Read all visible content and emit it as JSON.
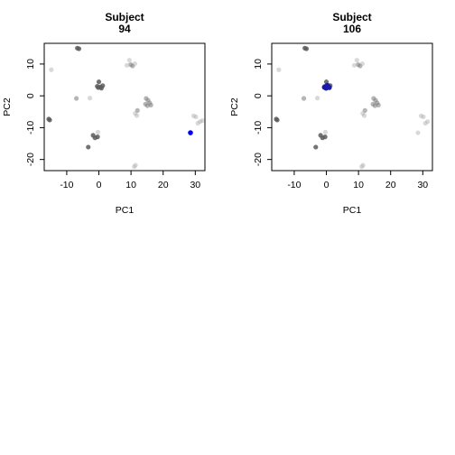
{
  "chart_data": [
    {
      "type": "scatter",
      "title_line1": "Subject",
      "title_line2": "94",
      "xlabel": "PC1",
      "ylabel": "PC2",
      "xlim": [
        -17,
        33
      ],
      "ylim": [
        -23.5,
        16.5
      ],
      "xticks": [
        -10,
        0,
        10,
        20,
        30
      ],
      "yticks": [
        -20,
        -10,
        0,
        10
      ],
      "grid": false,
      "background_points": [
        {
          "x": -6.2,
          "y": 14.8,
          "shade": "dark"
        },
        {
          "x": -6.7,
          "y": 15.0,
          "shade": "dark"
        },
        {
          "x": -14.8,
          "y": 8.2,
          "shade": "light"
        },
        {
          "x": -15.6,
          "y": -7.3,
          "shade": "dark"
        },
        {
          "x": -15.3,
          "y": -7.6,
          "shade": "dark"
        },
        {
          "x": -7.0,
          "y": -0.8,
          "shade": "mid"
        },
        {
          "x": -2.8,
          "y": -0.7,
          "shade": "light"
        },
        {
          "x": 0.0,
          "y": 4.4,
          "shade": "dark"
        },
        {
          "x": -0.5,
          "y": 3.0,
          "shade": "dark"
        },
        {
          "x": 0.5,
          "y": 2.8,
          "shade": "dark"
        },
        {
          "x": 1.2,
          "y": 3.2,
          "shade": "dark"
        },
        {
          "x": -0.2,
          "y": 2.6,
          "shade": "dark"
        },
        {
          "x": 0.8,
          "y": 2.4,
          "shade": "dark"
        },
        {
          "x": 9.5,
          "y": 11.2,
          "shade": "light"
        },
        {
          "x": 9.9,
          "y": 9.8,
          "shade": "mid"
        },
        {
          "x": 10.5,
          "y": 9.4,
          "shade": "mid"
        },
        {
          "x": 8.7,
          "y": 9.6,
          "shade": "light"
        },
        {
          "x": 11.2,
          "y": 10.1,
          "shade": "light"
        },
        {
          "x": 14.7,
          "y": -0.8,
          "shade": "mid"
        },
        {
          "x": 15.3,
          "y": -1.4,
          "shade": "mid"
        },
        {
          "x": 15.8,
          "y": -2.2,
          "shade": "mid"
        },
        {
          "x": 14.5,
          "y": -2.6,
          "shade": "mid"
        },
        {
          "x": 16.2,
          "y": -2.9,
          "shade": "mid"
        },
        {
          "x": 15.1,
          "y": -3.1,
          "shade": "mid"
        },
        {
          "x": 12.0,
          "y": -4.6,
          "shade": "mid"
        },
        {
          "x": 11.8,
          "y": -6.2,
          "shade": "light"
        },
        {
          "x": 11.3,
          "y": -5.5,
          "shade": "light"
        },
        {
          "x": -1.8,
          "y": -12.4,
          "shade": "dark"
        },
        {
          "x": -0.4,
          "y": -12.9,
          "shade": "dark"
        },
        {
          "x": -1.2,
          "y": -13.2,
          "shade": "dark"
        },
        {
          "x": -0.3,
          "y": -11.4,
          "shade": "light"
        },
        {
          "x": -3.3,
          "y": -16.1,
          "shade": "dark"
        },
        {
          "x": 11.4,
          "y": -21.8,
          "shade": "light"
        },
        {
          "x": 11.0,
          "y": -22.3,
          "shade": "light"
        },
        {
          "x": 29.5,
          "y": -6.3,
          "shade": "light"
        },
        {
          "x": 30.2,
          "y": -6.6,
          "shade": "light"
        },
        {
          "x": 31.5,
          "y": -8.1,
          "shade": "light"
        },
        {
          "x": 30.8,
          "y": -8.6,
          "shade": "light"
        },
        {
          "x": 32.2,
          "y": -7.8,
          "shade": "light"
        }
      ],
      "highlight_points": [
        {
          "x": 28.5,
          "y": -11.6
        }
      ],
      "highlight_color": "#0000ff"
    },
    {
      "type": "scatter",
      "title_line1": "Subject",
      "title_line2": "106",
      "xlabel": "PC1",
      "ylabel": "PC2",
      "xlim": [
        -17,
        33
      ],
      "ylim": [
        -23.5,
        16.5
      ],
      "xticks": [
        -10,
        0,
        10,
        20,
        30
      ],
      "yticks": [
        -20,
        -10,
        0,
        10
      ],
      "grid": false,
      "background_points": [
        {
          "x": -6.2,
          "y": 14.8,
          "shade": "dark"
        },
        {
          "x": -6.7,
          "y": 15.0,
          "shade": "dark"
        },
        {
          "x": -14.8,
          "y": 8.2,
          "shade": "light"
        },
        {
          "x": -15.6,
          "y": -7.3,
          "shade": "dark"
        },
        {
          "x": -15.3,
          "y": -7.6,
          "shade": "dark"
        },
        {
          "x": -7.0,
          "y": -0.8,
          "shade": "mid"
        },
        {
          "x": -2.8,
          "y": -0.7,
          "shade": "light"
        },
        {
          "x": 0.0,
          "y": 4.4,
          "shade": "dark"
        },
        {
          "x": -0.5,
          "y": 3.0,
          "shade": "dark"
        },
        {
          "x": 0.5,
          "y": 2.8,
          "shade": "dark"
        },
        {
          "x": 1.2,
          "y": 3.2,
          "shade": "dark"
        },
        {
          "x": 9.5,
          "y": 11.2,
          "shade": "light"
        },
        {
          "x": 9.9,
          "y": 9.8,
          "shade": "mid"
        },
        {
          "x": 10.5,
          "y": 9.4,
          "shade": "mid"
        },
        {
          "x": 8.7,
          "y": 9.6,
          "shade": "light"
        },
        {
          "x": 11.2,
          "y": 10.1,
          "shade": "light"
        },
        {
          "x": 14.7,
          "y": -0.8,
          "shade": "mid"
        },
        {
          "x": 15.3,
          "y": -1.4,
          "shade": "mid"
        },
        {
          "x": 15.8,
          "y": -2.2,
          "shade": "mid"
        },
        {
          "x": 14.5,
          "y": -2.6,
          "shade": "mid"
        },
        {
          "x": 16.2,
          "y": -2.9,
          "shade": "mid"
        },
        {
          "x": 15.1,
          "y": -3.1,
          "shade": "mid"
        },
        {
          "x": 12.0,
          "y": -4.6,
          "shade": "mid"
        },
        {
          "x": 11.8,
          "y": -6.2,
          "shade": "light"
        },
        {
          "x": 11.3,
          "y": -5.5,
          "shade": "light"
        },
        {
          "x": -1.8,
          "y": -12.4,
          "shade": "dark"
        },
        {
          "x": -0.4,
          "y": -12.9,
          "shade": "dark"
        },
        {
          "x": -1.2,
          "y": -13.2,
          "shade": "dark"
        },
        {
          "x": -0.3,
          "y": -11.4,
          "shade": "light"
        },
        {
          "x": -3.3,
          "y": -16.1,
          "shade": "dark"
        },
        {
          "x": 11.4,
          "y": -21.8,
          "shade": "light"
        },
        {
          "x": 11.0,
          "y": -22.3,
          "shade": "light"
        },
        {
          "x": 29.5,
          "y": -6.3,
          "shade": "light"
        },
        {
          "x": 30.2,
          "y": -6.6,
          "shade": "light"
        },
        {
          "x": 31.5,
          "y": -8.1,
          "shade": "light"
        },
        {
          "x": 30.8,
          "y": -8.6,
          "shade": "light"
        },
        {
          "x": 28.5,
          "y": -11.6,
          "shade": "light"
        }
      ],
      "highlight_points": [
        {
          "x": -0.6,
          "y": 2.7
        },
        {
          "x": 0.3,
          "y": 3.3
        },
        {
          "x": 0.9,
          "y": 2.6
        },
        {
          "x": -0.1,
          "y": 2.4
        },
        {
          "x": 0.6,
          "y": 3.0
        }
      ],
      "highlight_color": "#1a1aaa"
    }
  ]
}
